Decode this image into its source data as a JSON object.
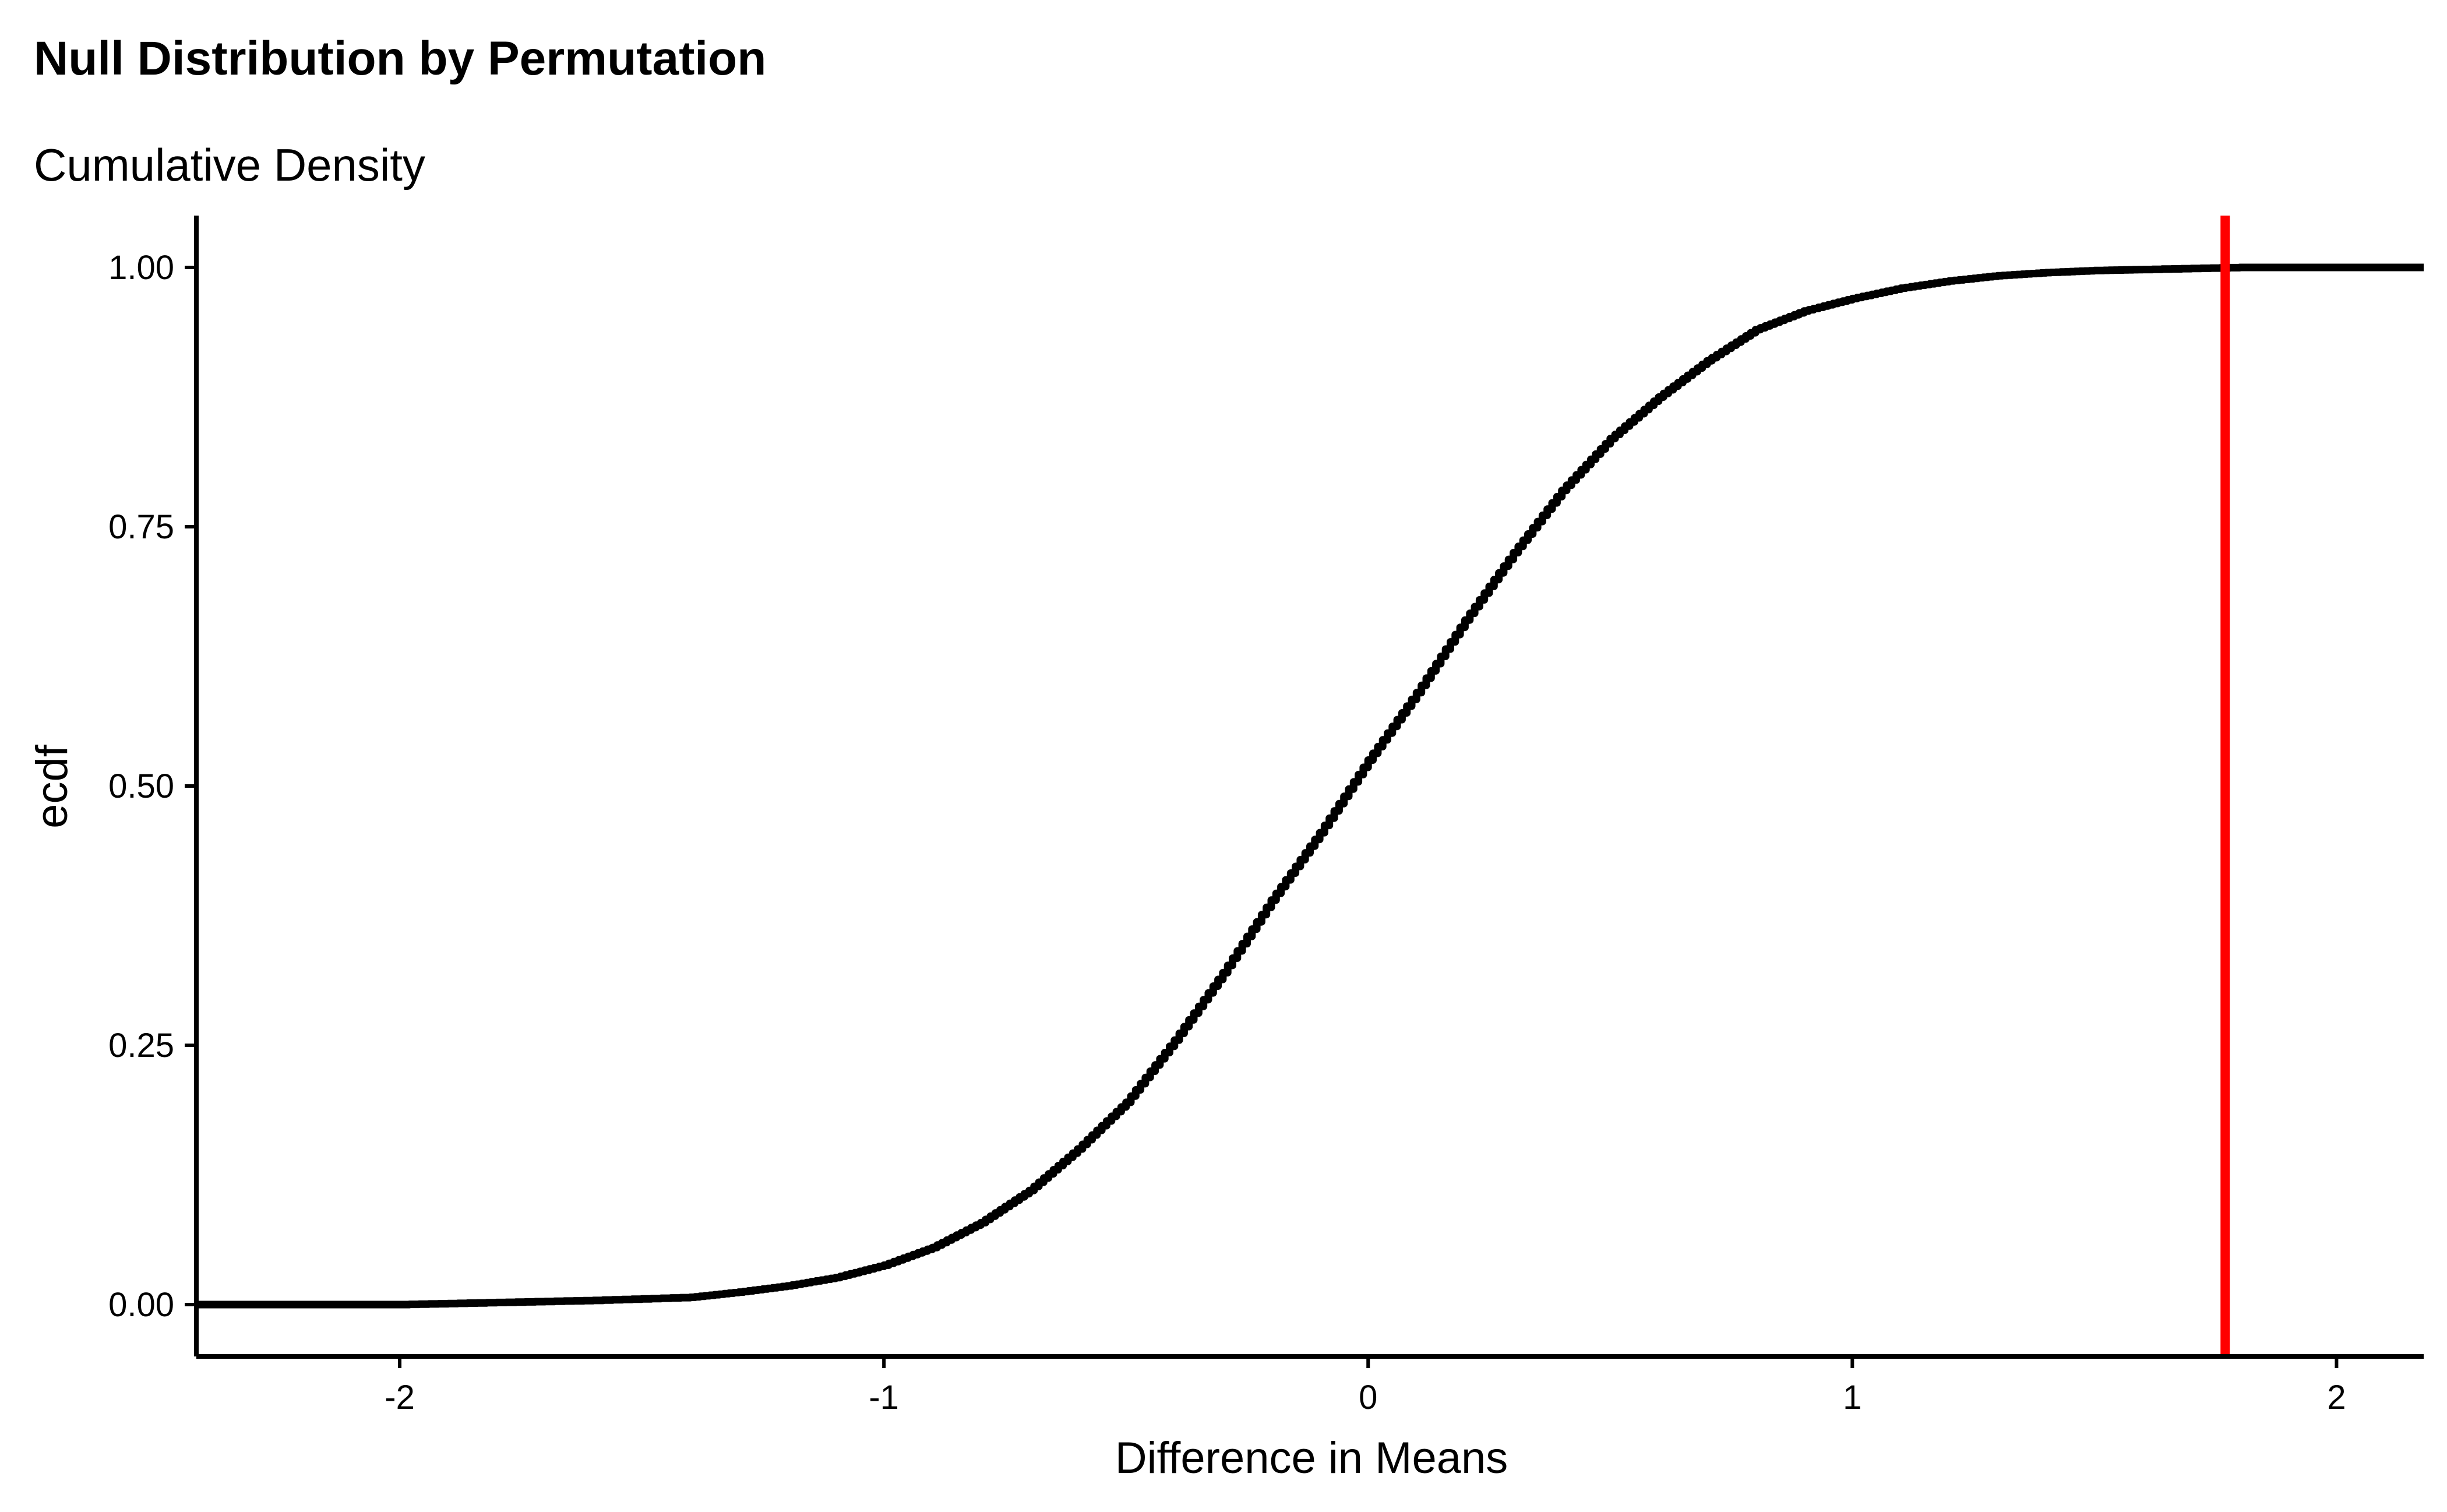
{
  "chart_data": {
    "type": "line",
    "title": "Null Distribution by Permutation",
    "subtitle": "Cumulative Density",
    "xlabel": "Difference in Means",
    "ylabel": "ecdf",
    "xlim": [
      -2.42,
      2.18
    ],
    "ylim": [
      -0.05,
      1.05
    ],
    "x_ticks": [
      {
        "value": -2,
        "label": "-2"
      },
      {
        "value": -1,
        "label": "-1"
      },
      {
        "value": 0,
        "label": "0"
      },
      {
        "value": 1,
        "label": "1"
      },
      {
        "value": 2,
        "label": "2"
      }
    ],
    "y_ticks": [
      {
        "value": 0,
        "label": "0.00"
      },
      {
        "value": 0.25,
        "label": "0.25"
      },
      {
        "value": 0.5,
        "label": "0.50"
      },
      {
        "value": 0.75,
        "label": "0.75"
      },
      {
        "value": 1,
        "label": "1.00"
      }
    ],
    "grid": false,
    "legend": "none",
    "series": [
      {
        "color": "#000000",
        "x": [
          -2.42,
          -2.0,
          -1.8,
          -1.6,
          -1.4,
          -1.3,
          -1.2,
          -1.1,
          -1.0,
          -0.9,
          -0.8,
          -0.7,
          -0.6,
          -0.5,
          -0.4,
          -0.3,
          -0.2,
          -0.1,
          0.0,
          0.1,
          0.2,
          0.3,
          0.4,
          0.5,
          0.6,
          0.7,
          0.8,
          0.9,
          1.0,
          1.1,
          1.2,
          1.3,
          1.4,
          1.5,
          1.6,
          1.8,
          2.0,
          2.18
        ],
        "y": [
          0.0,
          0.0,
          0.002,
          0.004,
          0.007,
          0.012,
          0.018,
          0.026,
          0.038,
          0.055,
          0.079,
          0.11,
          0.15,
          0.195,
          0.255,
          0.32,
          0.39,
          0.455,
          0.525,
          0.59,
          0.66,
          0.725,
          0.785,
          0.835,
          0.875,
          0.91,
          0.94,
          0.958,
          0.97,
          0.98,
          0.987,
          0.992,
          0.995,
          0.997,
          0.998,
          1.0,
          1.0,
          1.0
        ]
      }
    ],
    "reference_line": {
      "orientation": "vertical",
      "x": 1.77,
      "color": "#ff0000"
    }
  }
}
